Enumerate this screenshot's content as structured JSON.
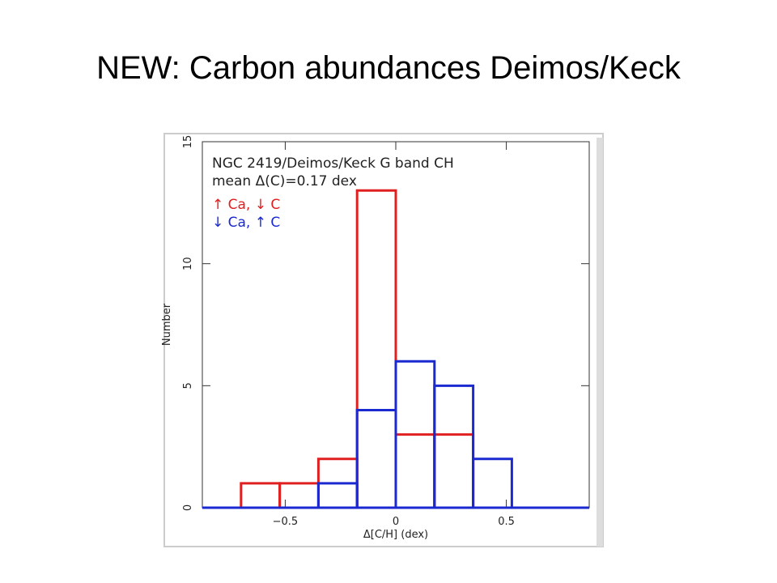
{
  "slide_title": "NEW:  Carbon abundances Deimos/Keck",
  "chart_data": {
    "type": "histogram",
    "annotations": [
      "NGC 2419/Deimos/Keck G band CH",
      "mean Δ(C)=0.17 dex"
    ],
    "xlabel": "Δ[C/H] (dex)",
    "ylabel": "Number",
    "bins": [
      -0.7,
      -0.525,
      -0.35,
      -0.175,
      0,
      0.175,
      0.35,
      0.525
    ],
    "series": [
      {
        "name": "↑ Ca, ↓ C",
        "color": "#e02020",
        "values": [
          1,
          1,
          2,
          13,
          3,
          3,
          0
        ]
      },
      {
        "name": "↓ Ca, ↑ C",
        "color": "#1a2ad0",
        "values": [
          0,
          0,
          1,
          4,
          6,
          5,
          2
        ]
      }
    ],
    "xlim": [
      -0.875,
      0.875
    ],
    "ylim": [
      0,
      15
    ],
    "xticks": [
      {
        "value": -0.5,
        "label": "−0.5"
      },
      0,
      0.5
    ],
    "yticks": [
      0,
      5,
      10,
      15
    ]
  }
}
